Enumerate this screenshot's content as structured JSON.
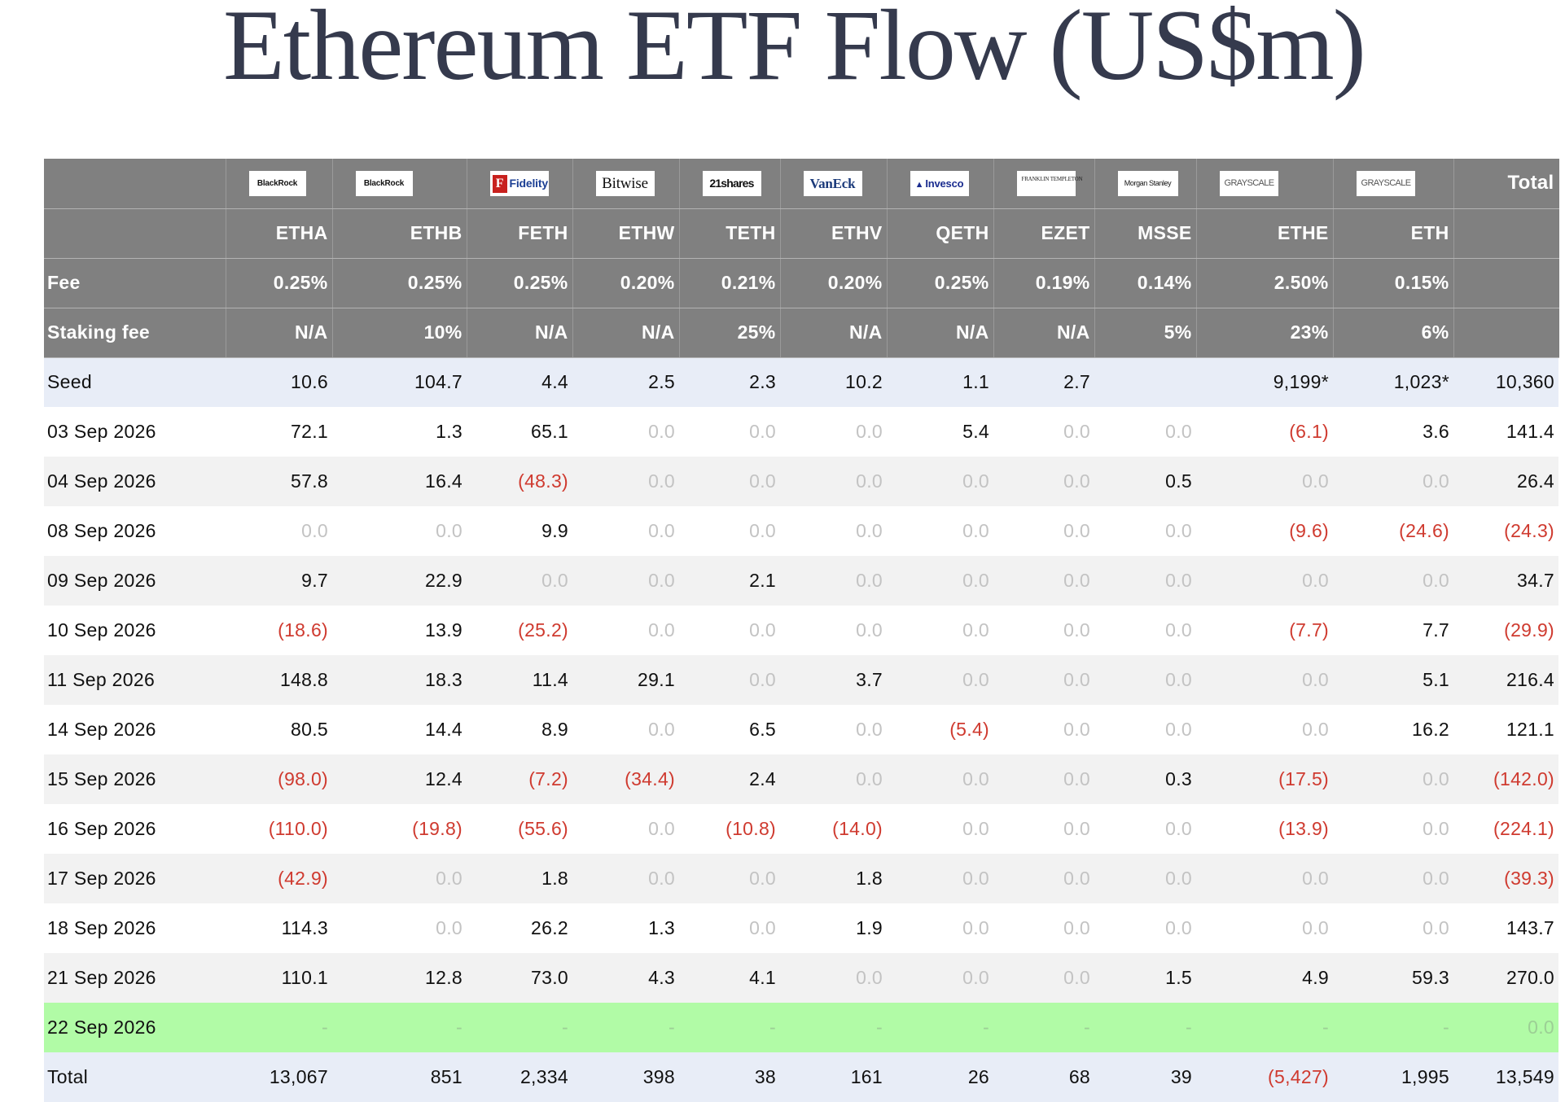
{
  "title": "Ethereum ETF Flow (US$m)",
  "header": {
    "issuers": [
      {
        "name": "BlackRock",
        "logo": "blackrock-logo"
      },
      {
        "name": "BlackRock",
        "logo": "blackrock-logo"
      },
      {
        "name": "Fidelity",
        "logo": "fidelity-logo"
      },
      {
        "name": "Bitwise",
        "logo": "bitwise-logo"
      },
      {
        "name": "21shares",
        "logo": "21shares-logo"
      },
      {
        "name": "VanEck",
        "logo": "vaneck-logo"
      },
      {
        "name": "Invesco",
        "logo": "invesco-logo"
      },
      {
        "name": "FRANKLIN TEMPLETON",
        "logo": "franklin-templeton-logo"
      },
      {
        "name": "Morgan Stanley",
        "logo": "morgan-stanley-logo"
      },
      {
        "name": "GRAYSCALE",
        "logo": "grayscale-logo"
      },
      {
        "name": "GRAYSCALE",
        "logo": "grayscale-logo"
      }
    ],
    "total_label": "Total",
    "tickers": [
      "ETHA",
      "ETHB",
      "FETH",
      "ETHW",
      "TETH",
      "ETHV",
      "QETH",
      "EZET",
      "MSSE",
      "ETHE",
      "ETH"
    ],
    "fee_label": "Fee",
    "fees": [
      "0.25%",
      "0.25%",
      "0.25%",
      "0.20%",
      "0.21%",
      "0.20%",
      "0.25%",
      "0.19%",
      "0.14%",
      "2.50%",
      "0.15%"
    ],
    "staking_label": "Staking fee",
    "staking_fees": [
      "N/A",
      "10%",
      "N/A",
      "N/A",
      "25%",
      "N/A",
      "N/A",
      "N/A",
      "5%",
      "23%",
      "6%"
    ]
  },
  "rows": [
    {
      "label": "Seed",
      "values": [
        "10.6",
        "104.7",
        "4.4",
        "2.5",
        "2.3",
        "10.2",
        "1.1",
        "2.7",
        "",
        "9,199*",
        "1,023*"
      ],
      "total": "10,360"
    },
    {
      "label": "03 Sep 2026",
      "values": [
        "72.1",
        "1.3",
        "65.1",
        "0.0",
        "0.0",
        "0.0",
        "5.4",
        "0.0",
        "0.0",
        "(6.1)",
        "3.6"
      ],
      "total": "141.4"
    },
    {
      "label": "04 Sep 2026",
      "values": [
        "57.8",
        "16.4",
        "(48.3)",
        "0.0",
        "0.0",
        "0.0",
        "0.0",
        "0.0",
        "0.5",
        "0.0",
        "0.0"
      ],
      "total": "26.4"
    },
    {
      "label": "08 Sep 2026",
      "values": [
        "0.0",
        "0.0",
        "9.9",
        "0.0",
        "0.0",
        "0.0",
        "0.0",
        "0.0",
        "0.0",
        "(9.6)",
        "(24.6)"
      ],
      "total": "(24.3)"
    },
    {
      "label": "09 Sep 2026",
      "values": [
        "9.7",
        "22.9",
        "0.0",
        "0.0",
        "2.1",
        "0.0",
        "0.0",
        "0.0",
        "0.0",
        "0.0",
        "0.0"
      ],
      "total": "34.7"
    },
    {
      "label": "10 Sep 2026",
      "values": [
        "(18.6)",
        "13.9",
        "(25.2)",
        "0.0",
        "0.0",
        "0.0",
        "0.0",
        "0.0",
        "0.0",
        "(7.7)",
        "7.7"
      ],
      "total": "(29.9)"
    },
    {
      "label": "11 Sep 2026",
      "values": [
        "148.8",
        "18.3",
        "11.4",
        "29.1",
        "0.0",
        "3.7",
        "0.0",
        "0.0",
        "0.0",
        "0.0",
        "5.1"
      ],
      "total": "216.4"
    },
    {
      "label": "14 Sep 2026",
      "values": [
        "80.5",
        "14.4",
        "8.9",
        "0.0",
        "6.5",
        "0.0",
        "(5.4)",
        "0.0",
        "0.0",
        "0.0",
        "16.2"
      ],
      "total": "121.1"
    },
    {
      "label": "15 Sep 2026",
      "values": [
        "(98.0)",
        "12.4",
        "(7.2)",
        "(34.4)",
        "2.4",
        "0.0",
        "0.0",
        "0.0",
        "0.3",
        "(17.5)",
        "0.0"
      ],
      "total": "(142.0)"
    },
    {
      "label": "16 Sep 2026",
      "values": [
        "(110.0)",
        "(19.8)",
        "(55.6)",
        "0.0",
        "(10.8)",
        "(14.0)",
        "0.0",
        "0.0",
        "0.0",
        "(13.9)",
        "0.0"
      ],
      "total": "(224.1)"
    },
    {
      "label": "17 Sep 2026",
      "values": [
        "(42.9)",
        "0.0",
        "1.8",
        "0.0",
        "0.0",
        "1.8",
        "0.0",
        "0.0",
        "0.0",
        "0.0",
        "0.0"
      ],
      "total": "(39.3)"
    },
    {
      "label": "18 Sep 2026",
      "values": [
        "114.3",
        "0.0",
        "26.2",
        "1.3",
        "0.0",
        "1.9",
        "0.0",
        "0.0",
        "0.0",
        "0.0",
        "0.0"
      ],
      "total": "143.7"
    },
    {
      "label": "21 Sep 2026",
      "values": [
        "110.1",
        "12.8",
        "73.0",
        "4.3",
        "4.1",
        "0.0",
        "0.0",
        "0.0",
        "1.5",
        "4.9",
        "59.3"
      ],
      "total": "270.0"
    },
    {
      "label": "22 Sep 2026",
      "values": [
        "-",
        "-",
        "-",
        "-",
        "-",
        "-",
        "-",
        "-",
        "-",
        "-",
        "-"
      ],
      "total": "0.0"
    },
    {
      "label": "Total",
      "values": [
        "13,067",
        "851",
        "2,334",
        "398",
        "38",
        "161",
        "26",
        "68",
        "39",
        "(5,427)",
        "1,995"
      ],
      "total": "13,549"
    }
  ],
  "colors": {
    "header_bg": "#808080",
    "seed_total_bg": "#e8edf7",
    "latest_row_bg": "#b1fba6",
    "negative_text": "#cf3a2f",
    "zero_text": "#c3c3c3",
    "title_text": "#353a4d"
  }
}
